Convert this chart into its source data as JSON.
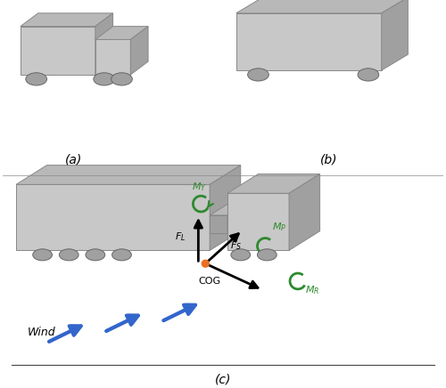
{
  "fig_width": 5.0,
  "fig_height": 4.36,
  "dpi": 100,
  "bg_color": "#ffffff",
  "vehicle_color_light": "#c8c8c8",
  "vehicle_color_dark": "#a0a0a0",
  "vehicle_color_top": "#b8b8b8",
  "arrow_color_blue": "#3366cc",
  "arrow_color_green": "#2d8a2d",
  "arrow_color_black": "#000000",
  "cog_color": "#e87020",
  "label_a": "(a)",
  "label_b": "(b)",
  "label_c": "(c)",
  "label_wind": "Wind",
  "label_cog": "COG",
  "label_FL": "$F_L$",
  "label_FS": "$F_S$",
  "label_MY": "$M_Y$",
  "label_MP": "$M_P$",
  "label_MR": "$M_R$"
}
